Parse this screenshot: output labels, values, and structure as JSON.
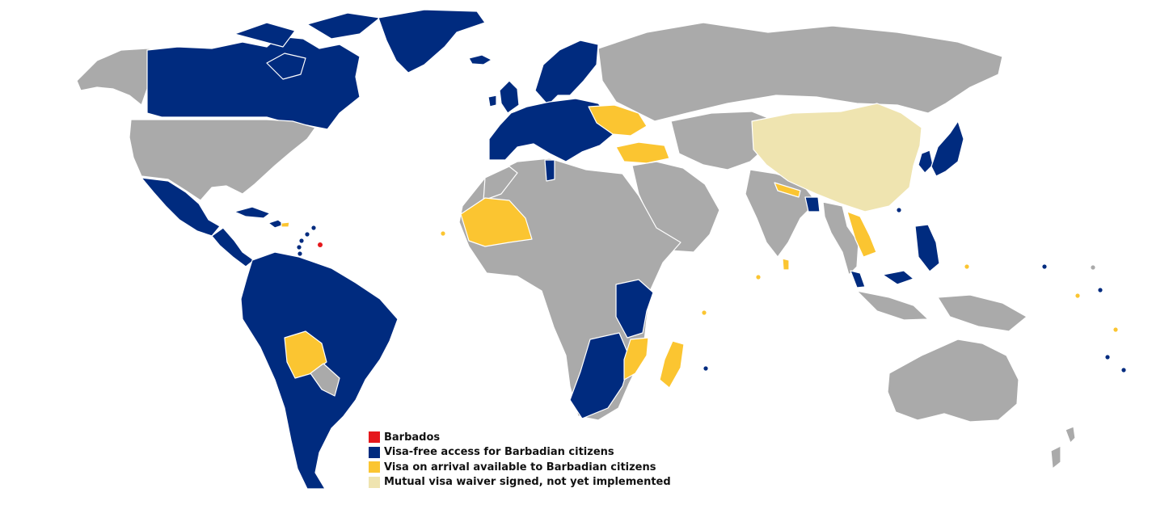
{
  "colors": {
    "ocean": "#ffffff",
    "other": "#aaaaaa",
    "barbados": "#e5181c",
    "visa_free": "#002b7f",
    "visa_on_arrival": "#fbc531",
    "waiver_pending": "#efe4b0",
    "border": "#ffffff"
  },
  "legend": {
    "items": [
      {
        "label": "Barbados",
        "status": "barbados"
      },
      {
        "label": "Visa-free access for Barbadian citizens",
        "status": "visa_free"
      },
      {
        "label": "Visa on arrival available to Barbadian citizens",
        "status": "visa_on_arrival"
      },
      {
        "label": "Mutual visa waiver signed, not yet implemented",
        "status": "waiver_pending"
      }
    ]
  },
  "regions": [
    {
      "id": "alaska",
      "status": "other"
    },
    {
      "id": "canada",
      "status": "visa_free"
    },
    {
      "id": "usa",
      "status": "other"
    },
    {
      "id": "mexico",
      "status": "visa_free"
    },
    {
      "id": "central-america",
      "status": "visa_free"
    },
    {
      "id": "cuba",
      "status": "visa_free"
    },
    {
      "id": "hispaniola",
      "status": "visa_free"
    },
    {
      "id": "puerto-rico",
      "status": "visa_on_arrival"
    },
    {
      "id": "barbados",
      "status": "barbados"
    },
    {
      "id": "greenland",
      "status": "visa_free"
    },
    {
      "id": "iceland",
      "status": "visa_free"
    },
    {
      "id": "south-america",
      "status": "visa_free"
    },
    {
      "id": "bolivia",
      "status": "visa_on_arrival"
    },
    {
      "id": "paraguay",
      "status": "other"
    },
    {
      "id": "europe",
      "status": "visa_free"
    },
    {
      "id": "scandinavia",
      "status": "visa_free"
    },
    {
      "id": "uk",
      "status": "visa_free"
    },
    {
      "id": "ireland",
      "status": "visa_free"
    },
    {
      "id": "ukraine",
      "status": "visa_on_arrival"
    },
    {
      "id": "turkey",
      "status": "visa_on_arrival"
    },
    {
      "id": "russia",
      "status": "other"
    },
    {
      "id": "middle-east",
      "status": "other"
    },
    {
      "id": "central-asia",
      "status": "other"
    },
    {
      "id": "india",
      "status": "other"
    },
    {
      "id": "nepal",
      "status": "visa_on_arrival"
    },
    {
      "id": "bangladesh",
      "status": "visa_free"
    },
    {
      "id": "china",
      "status": "waiver_pending"
    },
    {
      "id": "korea",
      "status": "visa_free"
    },
    {
      "id": "japan",
      "status": "visa_free"
    },
    {
      "id": "se-asia",
      "status": "other"
    },
    {
      "id": "laos-cambodia",
      "status": "visa_on_arrival"
    },
    {
      "id": "malaysia",
      "status": "visa_free"
    },
    {
      "id": "philippines",
      "status": "visa_free"
    },
    {
      "id": "indonesia",
      "status": "other"
    },
    {
      "id": "australia",
      "status": "other"
    },
    {
      "id": "new-zealand",
      "status": "other"
    },
    {
      "id": "africa",
      "status": "other"
    },
    {
      "id": "morocco",
      "status": "other"
    },
    {
      "id": "tunisia",
      "status": "visa_free"
    },
    {
      "id": "mali-mauritania",
      "status": "visa_on_arrival"
    },
    {
      "id": "east-africa",
      "status": "visa_free"
    },
    {
      "id": "southern-africa",
      "status": "visa_free"
    },
    {
      "id": "mozambique",
      "status": "visa_on_arrival"
    },
    {
      "id": "madagascar",
      "status": "visa_on_arrival"
    },
    {
      "id": "sri-lanka",
      "status": "visa_on_arrival"
    },
    {
      "id": "pacific-islands",
      "status": "visa_on_arrival"
    }
  ]
}
